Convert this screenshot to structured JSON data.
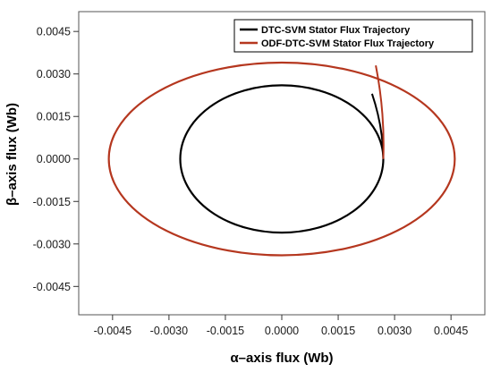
{
  "chart_data": {
    "type": "line",
    "xlabel": "α–axis flux (Wb)",
    "ylabel": "β–axis flux (Wb)",
    "xlim": [
      -0.0054,
      0.0054
    ],
    "ylim": [
      -0.0055,
      0.0052
    ],
    "x_ticks": [
      -0.0045,
      -0.003,
      -0.0015,
      0,
      0.0015,
      0.003,
      0.0045
    ],
    "x_tick_labels": [
      "-0.0045",
      "-0.0030",
      "-0.0015",
      "0.0000",
      "0.0015",
      "0.0030",
      "0.0045"
    ],
    "y_ticks": [
      -0.0045,
      -0.003,
      -0.0015,
      0,
      0.0015,
      0.003,
      0.0045
    ],
    "y_tick_labels": [
      "-0.0045",
      "-0.0030",
      "-0.0015",
      "0.0000",
      "0.0015",
      "0.0030",
      "0.0045"
    ],
    "grid": false,
    "legend_position": "top-right",
    "series": [
      {
        "name": "DTC-SVM Stator Flux Trajectory",
        "color": "#000000",
        "shape": "circle",
        "radius_x": 0.0027,
        "radius_y": 0.0026,
        "start_point": [
          0.0027,
          0.0
        ],
        "transient_to": [
          0.0024,
          0.0023
        ]
      },
      {
        "name": "ODF-DTC-SVM Stator Flux Trajectory",
        "color": "#b5371f",
        "shape": "circle",
        "radius_x": 0.0046,
        "radius_y": 0.0034,
        "start_point": [
          0.0027,
          0.0
        ],
        "transient_to": [
          0.0025,
          0.0033
        ]
      }
    ]
  }
}
